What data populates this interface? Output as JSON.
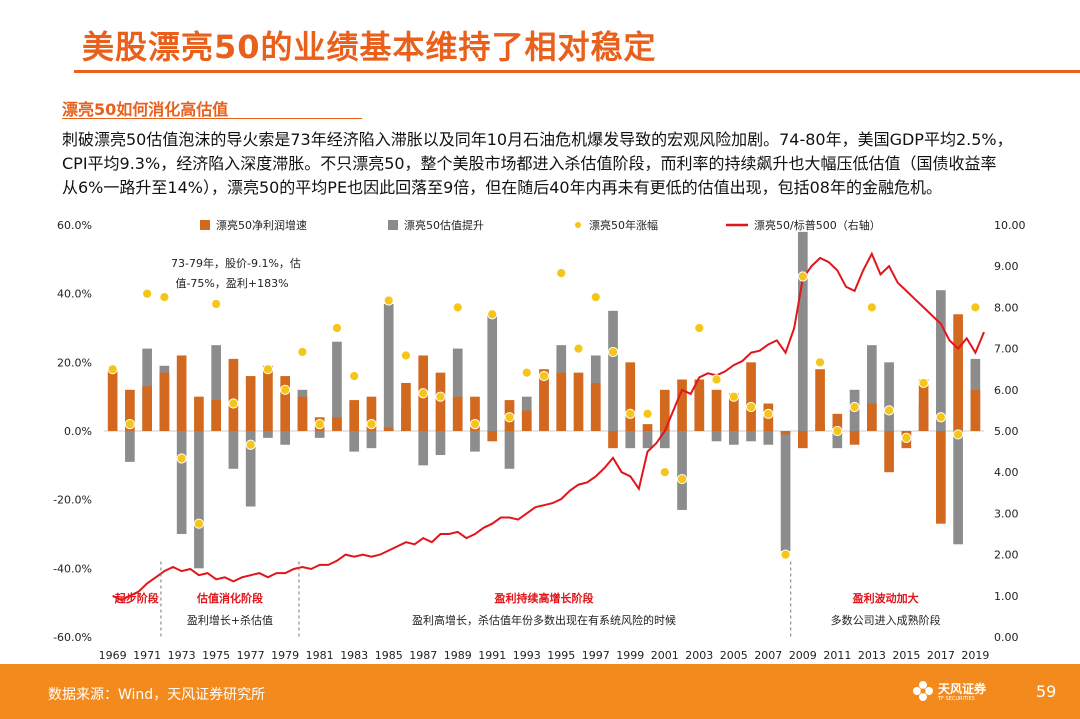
{
  "header": {
    "title": "美股漂亮50的业绩基本维持了相对稳定",
    "subtitle": "漂亮50如何消化高估值",
    "paragraph": [
      "刺破漂亮50估值泡沫的导火索是73年经济陷入滞胀以及同年10月石油危机爆发导致的宏观风险加剧。74-80年，美国GDP平均2.5%，",
      "CPI平均9.3%，经济陷入深度滞胀。不只漂亮50，整个美股市场都进入杀估值阶段，而利率的持续飙升也大幅压低估值（国债收益率",
      "从6%一路升至14%），漂亮50的平均PE也因此回落至9倍，但在随后40年内再未有更低的估值出现，包括08年的金融危机。"
    ]
  },
  "chart_data": {
    "type": "bar",
    "x": [
      1969,
      1970,
      1971,
      1972,
      1973,
      1974,
      1975,
      1976,
      1977,
      1978,
      1979,
      1980,
      1981,
      1982,
      1983,
      1984,
      1985,
      1986,
      1987,
      1988,
      1989,
      1990,
      1991,
      1992,
      1993,
      1994,
      1995,
      1996,
      1997,
      1998,
      1999,
      2000,
      2001,
      2002,
      2003,
      2004,
      2005,
      2006,
      2007,
      2008,
      2009,
      2010,
      2011,
      2012,
      2013,
      2014,
      2015,
      2016,
      2017,
      2018,
      2019
    ],
    "x_tick_labels": [
      "1969",
      "1971",
      "1973",
      "1975",
      "1977",
      "1979",
      "1981",
      "1983",
      "1985",
      "1987",
      "1989",
      "1991",
      "1993",
      "1995",
      "1997",
      "1999",
      "2001",
      "2003",
      "2005",
      "2007",
      "2009",
      "2011",
      "2013",
      "2015",
      "2017",
      "2019"
    ],
    "y_left": {
      "ticks": [
        "60.0%",
        "40.0%",
        "20.0%",
        "0.0%",
        "-20.0%",
        "-40.0%",
        "-60.0%"
      ],
      "min": -60,
      "max": 60
    },
    "y_right": {
      "ticks": [
        "10.00",
        "9.00",
        "8.00",
        "7.00",
        "6.00",
        "5.00",
        "4.00",
        "3.00",
        "2.00",
        "1.00",
        "0.00"
      ],
      "min": 0,
      "max": 10
    },
    "legend": {
      "placement": "top",
      "items": [
        {
          "name": "漂亮50净利润增速",
          "color": "#D2691E",
          "kind": "bar"
        },
        {
          "name": "漂亮50估值提升",
          "color": "#8C8C8C",
          "kind": "bar"
        },
        {
          "name": "漂亮50年涨幅",
          "color": "#F5C518",
          "kind": "dot"
        },
        {
          "name": "漂亮50/标普500（右轴）",
          "color": "#E2151A",
          "kind": "line"
        }
      ]
    },
    "series": [
      {
        "name": "漂亮50净利润增速",
        "axis": "left",
        "values": [
          18,
          12,
          13,
          17,
          22,
          10,
          9,
          21,
          16,
          19,
          16,
          10,
          4,
          4,
          9,
          10,
          1,
          14,
          22,
          17,
          10,
          10,
          -3,
          9,
          6,
          18,
          17,
          17,
          14,
          -5,
          20,
          2,
          12,
          15,
          15,
          12,
          11,
          20,
          8,
          -1,
          -5,
          18,
          5,
          -4,
          8,
          -12,
          -5,
          15,
          -27,
          34,
          12
        ]
      },
      {
        "name": "漂亮50估值提升",
        "axis": "left",
        "values": [
          0,
          -9,
          24,
          19,
          -30,
          -40,
          25,
          -11,
          -22,
          -2,
          -4,
          12,
          -2,
          26,
          -6,
          -5,
          37,
          7,
          -10,
          -7,
          24,
          -6,
          34,
          -11,
          10,
          15,
          25,
          0,
          22,
          35,
          -5,
          -5,
          -5,
          -23,
          13,
          -3,
          -4,
          -3,
          -4,
          -35,
          58,
          2,
          -5,
          12,
          25,
          20,
          -1,
          8,
          41,
          -33,
          21
        ]
      },
      {
        "name": "漂亮50年涨幅",
        "axis": "left",
        "values": [
          18,
          2,
          40,
          39,
          -8,
          -27,
          37,
          8,
          -4,
          18,
          12,
          23,
          2,
          30,
          16,
          2,
          38,
          22,
          11,
          10,
          36,
          2,
          34,
          4,
          17,
          16,
          46,
          24,
          39,
          23,
          5,
          5,
          -12,
          -14,
          30,
          15,
          10,
          7,
          5,
          -36,
          45,
          20,
          0,
          7,
          36,
          6,
          -2,
          14,
          4,
          -1,
          36
        ]
      },
      {
        "name": "漂亮50/标普500（右轴）",
        "axis": "right",
        "points": [
          [
            1969,
            1.0
          ],
          [
            1969.5,
            0.9
          ],
          [
            1970,
            1.0
          ],
          [
            1970.5,
            1.1
          ],
          [
            1971,
            1.3
          ],
          [
            1971.5,
            1.45
          ],
          [
            1972,
            1.6
          ],
          [
            1972.5,
            1.7
          ],
          [
            1973,
            1.6
          ],
          [
            1973.5,
            1.65
          ],
          [
            1974,
            1.5
          ],
          [
            1974.5,
            1.55
          ],
          [
            1975,
            1.4
          ],
          [
            1975.5,
            1.45
          ],
          [
            1976,
            1.35
          ],
          [
            1976.5,
            1.45
          ],
          [
            1977,
            1.5
          ],
          [
            1977.5,
            1.55
          ],
          [
            1978,
            1.45
          ],
          [
            1978.5,
            1.55
          ],
          [
            1979,
            1.55
          ],
          [
            1979.5,
            1.65
          ],
          [
            1980,
            1.7
          ],
          [
            1980.5,
            1.65
          ],
          [
            1981,
            1.75
          ],
          [
            1981.5,
            1.75
          ],
          [
            1982,
            1.85
          ],
          [
            1982.5,
            2.0
          ],
          [
            1983,
            1.95
          ],
          [
            1983.5,
            2.0
          ],
          [
            1984,
            1.95
          ],
          [
            1984.5,
            2.0
          ],
          [
            1985,
            2.1
          ],
          [
            1985.5,
            2.2
          ],
          [
            1986,
            2.3
          ],
          [
            1986.5,
            2.25
          ],
          [
            1987,
            2.4
          ],
          [
            1987.5,
            2.3
          ],
          [
            1988,
            2.5
          ],
          [
            1988.5,
            2.5
          ],
          [
            1989,
            2.55
          ],
          [
            1989.5,
            2.4
          ],
          [
            1990,
            2.5
          ],
          [
            1990.5,
            2.65
          ],
          [
            1991,
            2.75
          ],
          [
            1991.5,
            2.9
          ],
          [
            1992,
            2.9
          ],
          [
            1992.5,
            2.85
          ],
          [
            1993,
            3.0
          ],
          [
            1993.5,
            3.15
          ],
          [
            1994,
            3.2
          ],
          [
            1994.5,
            3.25
          ],
          [
            1995,
            3.35
          ],
          [
            1995.5,
            3.55
          ],
          [
            1996,
            3.7
          ],
          [
            1996.5,
            3.75
          ],
          [
            1997,
            3.9
          ],
          [
            1997.5,
            4.1
          ],
          [
            1998,
            4.35
          ],
          [
            1998.5,
            4.0
          ],
          [
            1999,
            3.9
          ],
          [
            1999.5,
            3.6
          ],
          [
            2000,
            4.5
          ],
          [
            2000.5,
            4.7
          ],
          [
            2001,
            5.0
          ],
          [
            2001.5,
            5.5
          ],
          [
            2002,
            6.0
          ],
          [
            2002.5,
            5.9
          ],
          [
            2003,
            6.3
          ],
          [
            2003.5,
            6.4
          ],
          [
            2004,
            6.35
          ],
          [
            2004.5,
            6.45
          ],
          [
            2005,
            6.6
          ],
          [
            2005.5,
            6.7
          ],
          [
            2006,
            6.9
          ],
          [
            2006.5,
            6.95
          ],
          [
            2007,
            7.1
          ],
          [
            2007.5,
            7.2
          ],
          [
            2008,
            6.9
          ],
          [
            2008.5,
            7.5
          ],
          [
            2009,
            8.7
          ],
          [
            2009.5,
            9.0
          ],
          [
            2010,
            9.2
          ],
          [
            2010.5,
            9.1
          ],
          [
            2011,
            8.9
          ],
          [
            2011.5,
            8.5
          ],
          [
            2012,
            8.4
          ],
          [
            2012.5,
            8.9
          ],
          [
            2013,
            9.3
          ],
          [
            2013.5,
            8.8
          ],
          [
            2014,
            9.0
          ],
          [
            2014.5,
            8.6
          ],
          [
            2015,
            8.4
          ],
          [
            2015.5,
            8.2
          ],
          [
            2016,
            8.0
          ],
          [
            2016.5,
            7.8
          ],
          [
            2017,
            7.6
          ],
          [
            2017.5,
            7.2
          ],
          [
            2018,
            7.0
          ],
          [
            2018.5,
            7.25
          ],
          [
            2019,
            6.9
          ],
          [
            2019.5,
            7.4
          ]
        ]
      }
    ],
    "annotations": {
      "note": [
        "73-79年，股价-9.1%，估",
        "值-75%，盈利+183%"
      ],
      "phases": [
        {
          "title": "起步阶段",
          "desc": ""
        },
        {
          "title": "估值消化阶段",
          "desc": "盈利增长+杀估值"
        },
        {
          "title": "盈利持续高增长阶段",
          "desc": "盈利高增长，杀估值年份多数出现在有系统风险的时候"
        },
        {
          "title": "盈利波动加大",
          "desc": "多数公司进入成熟阶段"
        }
      ]
    }
  },
  "footer": {
    "source": "数据来源：Wind，天风证券研究所",
    "logo_text": "天风证券",
    "logo_sub": "TF SECURITIES",
    "page": "59"
  }
}
